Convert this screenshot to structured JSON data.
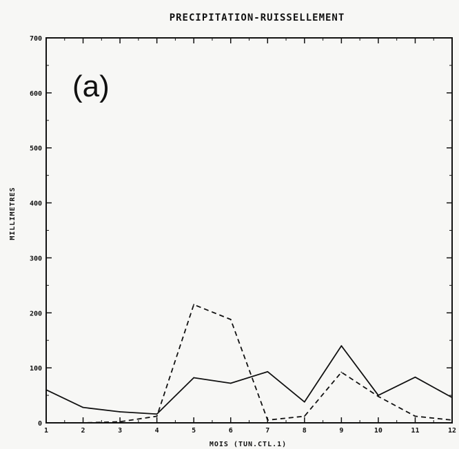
{
  "chart_data": {
    "type": "line",
    "title": "PRECIPITATION-RUISSELLEMENT",
    "panel_label": "(a)",
    "xlabel": "MOIS (TUN.CTL.1)",
    "ylabel": "MILLIMETRES",
    "xlim": [
      1,
      12
    ],
    "ylim": [
      0,
      700
    ],
    "xticks": [
      "1",
      "2",
      "3",
      "4",
      "5",
      "6",
      "7",
      "8",
      "9",
      "10",
      "11",
      "12"
    ],
    "yticks": [
      "0",
      "100",
      "200",
      "300",
      "400",
      "500",
      "600",
      "700"
    ],
    "x": [
      1,
      2,
      3,
      4,
      5,
      6,
      7,
      8,
      9,
      10,
      11,
      12
    ],
    "series": [
      {
        "style": "solid",
        "color": "#111111",
        "values": [
          60,
          28,
          20,
          16,
          82,
          72,
          93,
          38,
          140,
          50,
          83,
          46
        ]
      },
      {
        "style": "dashed",
        "color": "#111111",
        "values": [
          0,
          0,
          2,
          12,
          215,
          188,
          5,
          12,
          92,
          48,
          12,
          5
        ]
      }
    ],
    "grid": false,
    "legend": "none"
  }
}
